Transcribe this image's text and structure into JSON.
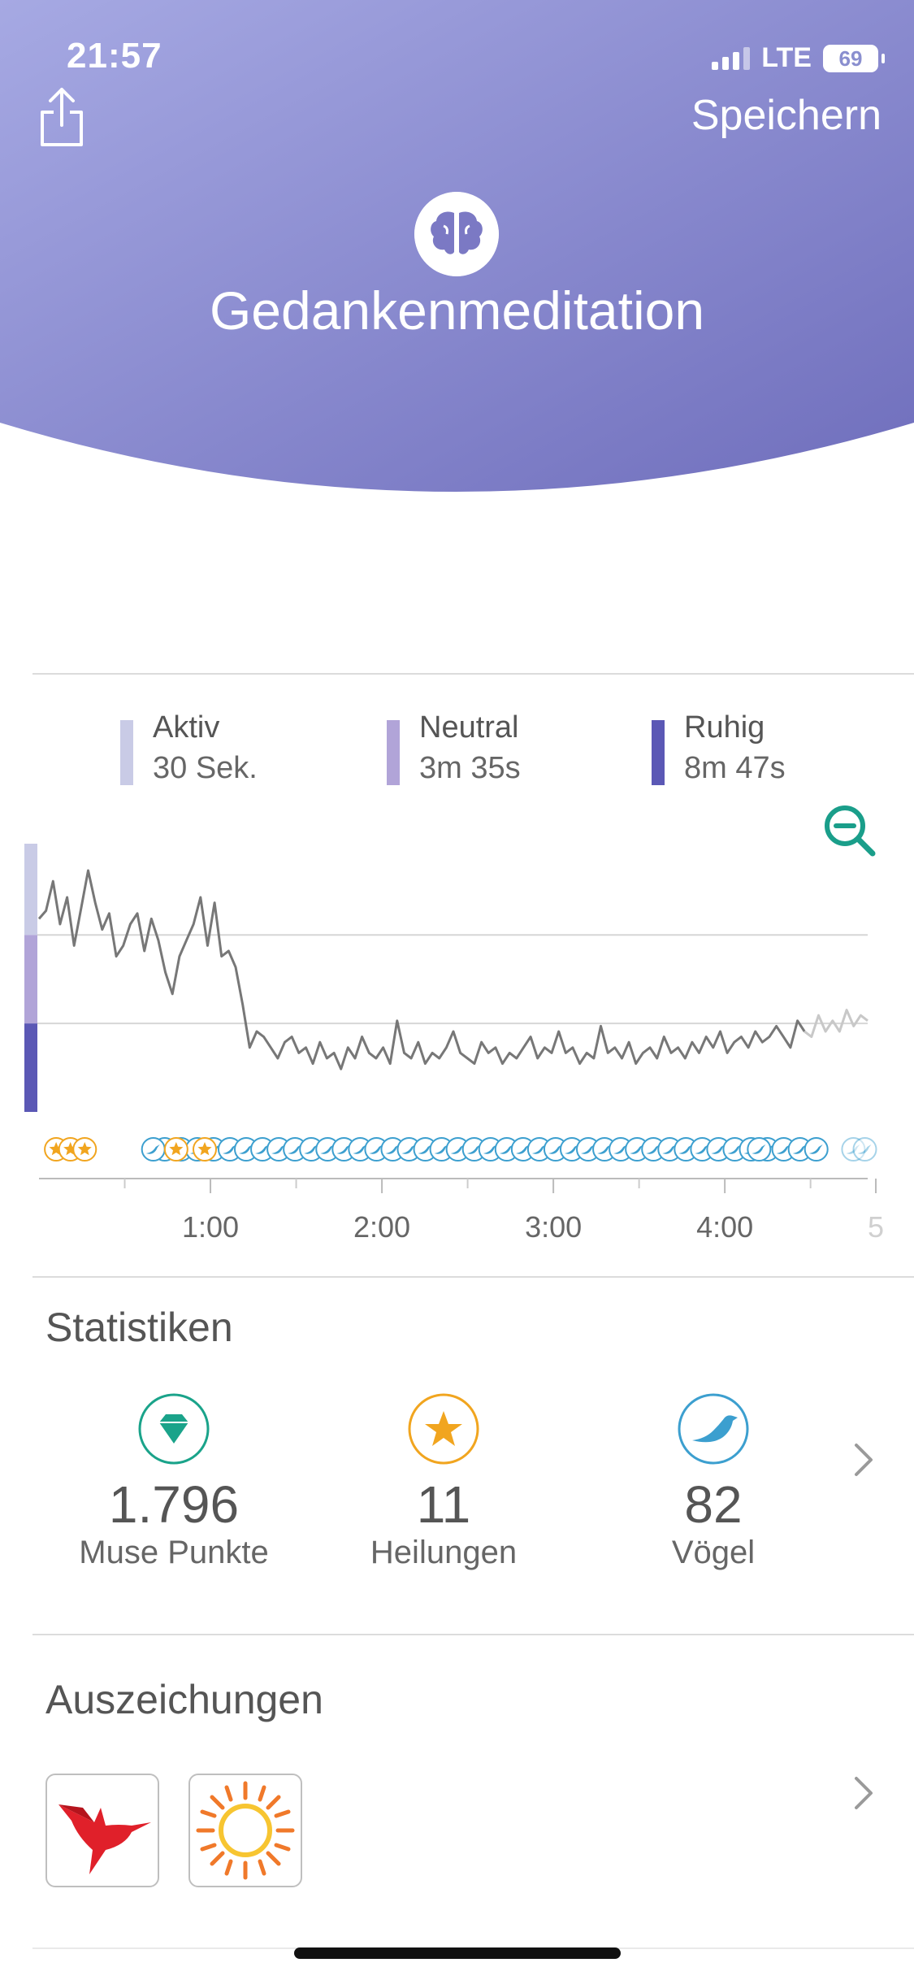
{
  "status_bar": {
    "time": "21:57",
    "network": "LTE",
    "battery": "69"
  },
  "header": {
    "title": "Gedankenmeditation",
    "save_label": "Speichern"
  },
  "legend": [
    {
      "label": "Aktiv",
      "value": "30 Sek.",
      "color": "#c9cbe6"
    },
    {
      "label": "Neutral",
      "value": "3m 35s",
      "color": "#b1a4d8"
    },
    {
      "label": "Ruhig",
      "value": "8m 47s",
      "color": "#5b58b5"
    }
  ],
  "chart_data": {
    "type": "line",
    "title": "",
    "xlabel": "",
    "ylabel": "",
    "x_ticks": [
      "1:00",
      "2:00",
      "3:00",
      "4:00",
      "5"
    ],
    "x_range_seconds": [
      0,
      290
    ],
    "series": [
      {
        "values": [
          0.72,
          0.75,
          0.86,
          0.7,
          0.8,
          0.62,
          0.76,
          0.9,
          0.78,
          0.68,
          0.74,
          0.58,
          0.62,
          0.7,
          0.74,
          0.6,
          0.72,
          0.64,
          0.52,
          0.44,
          0.58,
          0.64,
          0.7,
          0.8,
          0.62,
          0.78,
          0.58,
          0.6,
          0.54,
          0.4,
          0.24,
          0.3,
          0.28,
          0.24,
          0.2,
          0.26,
          0.28,
          0.22,
          0.24,
          0.18,
          0.26,
          0.2,
          0.22,
          0.16,
          0.24,
          0.2,
          0.28,
          0.22,
          0.2,
          0.24,
          0.18,
          0.34,
          0.22,
          0.2,
          0.26,
          0.18,
          0.22,
          0.2,
          0.24,
          0.3,
          0.22,
          0.2,
          0.18,
          0.26,
          0.22,
          0.24,
          0.18,
          0.22,
          0.2,
          0.24,
          0.28,
          0.2,
          0.24,
          0.22,
          0.3,
          0.22,
          0.24,
          0.18,
          0.22,
          0.2,
          0.32,
          0.22,
          0.24,
          0.2,
          0.26,
          0.18,
          0.22,
          0.24,
          0.2,
          0.28,
          0.22,
          0.24,
          0.2,
          0.26,
          0.22,
          0.28,
          0.24,
          0.3,
          0.22,
          0.26,
          0.28,
          0.24,
          0.3,
          0.26,
          0.28,
          0.32,
          0.28,
          0.24,
          0.34,
          0.3,
          0.28,
          0.36,
          0.3,
          0.34,
          0.3,
          0.38,
          0.32,
          0.36,
          0.34
        ],
        "fade_from_index": 109
      }
    ],
    "zone_gridlines": [
      0.33,
      0.66
    ],
    "events": {
      "recoveries_star": [
        6,
        11,
        16,
        48,
        58
      ],
      "birds_start": 44,
      "birds_end": 272,
      "birds_extra": [
        40,
        252
      ]
    }
  },
  "stats": {
    "title": "Statistiken",
    "items": [
      {
        "value": "1.796",
        "label": "Muse Punkte",
        "icon": "diamond-icon",
        "color": "#1aa38a"
      },
      {
        "value": "11",
        "label": "Heilungen",
        "icon": "star-icon",
        "color": "#f1a51f"
      },
      {
        "value": "82",
        "label": "Vögel",
        "icon": "bird-icon",
        "color": "#3c9fcf"
      }
    ]
  },
  "awards": {
    "title": "Auszeichungen",
    "items": [
      {
        "icon": "red-bird-icon",
        "color": "#e0202a"
      },
      {
        "icon": "sun-icon",
        "color": "#f0792a"
      }
    ]
  }
}
